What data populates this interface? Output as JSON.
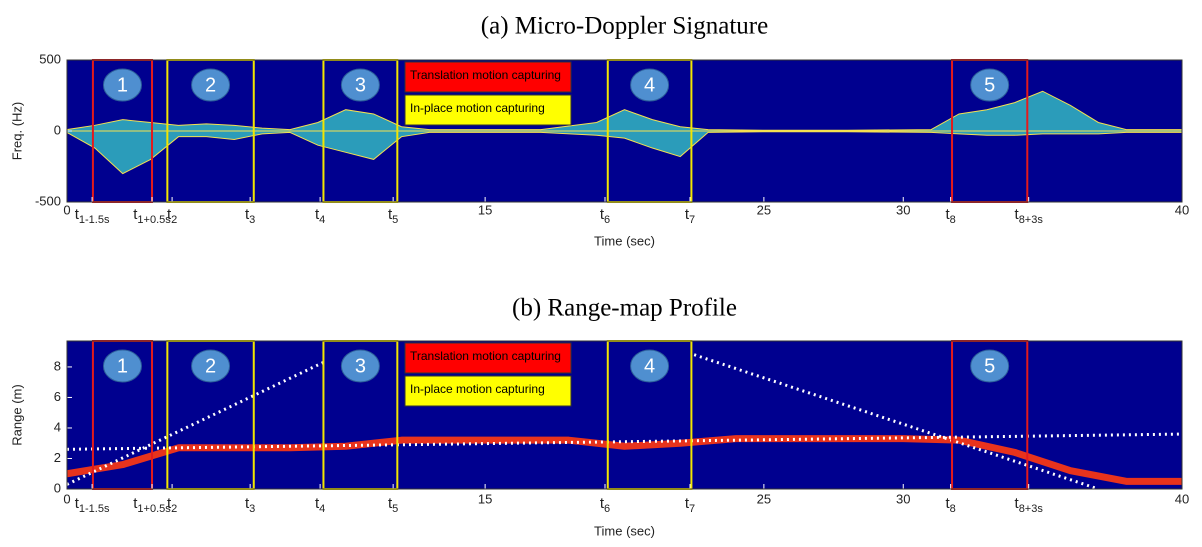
{
  "chart_data": [
    {
      "type": "spectrogram",
      "title": "(a) Micro-Doppler Signature",
      "xlabel": "Time (sec)",
      "ylabel": "Freq. (Hz)",
      "background": "#00008f",
      "xlim": [
        0,
        40
      ],
      "xticks": [
        0,
        {
          "value": 0.9,
          "label": "t",
          "subscript": "1-1.5s"
        },
        {
          "value": 3.05,
          "label": "t",
          "subscript": "1+0.5s"
        },
        {
          "value": 3.77,
          "label": "t",
          "subscript": "2"
        },
        {
          "value": 6.57,
          "label": "t",
          "subscript": "3"
        },
        {
          "value": 9.08,
          "label": "t",
          "subscript": "4"
        },
        {
          "value": 11.7,
          "label": "t",
          "subscript": "5"
        },
        15,
        {
          "value": 19.3,
          "label": "t",
          "subscript": "6"
        },
        {
          "value": 22.35,
          "label": "t",
          "subscript": "7"
        },
        25,
        30,
        {
          "value": 31.7,
          "label": "t",
          "subscript": "8"
        },
        {
          "value": 34.5,
          "label": "t",
          "subscript": "8+3s"
        },
        40
      ],
      "ylim": [
        -500,
        500
      ],
      "yticks": [
        -500,
        0,
        500
      ],
      "series": [
        {
          "kind": "area",
          "color": "#39d0c8",
          "x": [
            0,
            1,
            2,
            3,
            4,
            5,
            6,
            7,
            8,
            9,
            10,
            11,
            12,
            13,
            15,
            17,
            19,
            20,
            21,
            22,
            23,
            25,
            28,
            31,
            32,
            33,
            34,
            35,
            36,
            37,
            38,
            40
          ],
          "upper": [
            10,
            40,
            80,
            60,
            40,
            50,
            40,
            20,
            10,
            60,
            150,
            120,
            30,
            10,
            10,
            10,
            60,
            150,
            80,
            30,
            10,
            5,
            5,
            10,
            120,
            150,
            200,
            280,
            180,
            60,
            10,
            10
          ],
          "lower": [
            -10,
            -120,
            -300,
            -200,
            -40,
            -40,
            -60,
            -20,
            -10,
            -100,
            -150,
            -200,
            -40,
            -10,
            -10,
            -10,
            -30,
            -50,
            -120,
            -180,
            -10,
            -5,
            -5,
            -10,
            -20,
            -30,
            -30,
            -20,
            -20,
            -20,
            -10,
            -10
          ]
        }
      ],
      "boxes": [
        {
          "x": [
            0.93,
            3.05
          ],
          "label": "1",
          "color": "#e41a1c"
        },
        {
          "x": [
            3.6,
            6.7
          ],
          "label": "2",
          "color": "#f2e600"
        },
        {
          "x": [
            9.2,
            11.85
          ],
          "label": "3",
          "color": "#f2e600"
        },
        {
          "x": [
            19.4,
            22.4
          ],
          "label": "4",
          "color": "#f2e600"
        },
        {
          "x": [
            31.75,
            34.45
          ],
          "label": "5",
          "color": "#e41a1c"
        }
      ],
      "legend": [
        {
          "name": "Translation motion capturing",
          "color": "#ff0000"
        },
        {
          "name": "In-place motion capturing",
          "color": "#ffff00"
        }
      ]
    },
    {
      "type": "spectrogram",
      "title": "(b) Range-map Profile",
      "xlabel": "Time (sec)",
      "ylabel": "Range (m)",
      "background": "#00008f",
      "xlim": [
        0,
        40
      ],
      "xticks": [
        0,
        {
          "value": 0.9,
          "label": "t",
          "subscript": "1-1.5s"
        },
        {
          "value": 3.05,
          "label": "t",
          "subscript": "1+0.5s"
        },
        {
          "value": 3.77,
          "label": "t",
          "subscript": "2"
        },
        {
          "value": 6.57,
          "label": "t",
          "subscript": "3"
        },
        {
          "value": 9.08,
          "label": "t",
          "subscript": "4"
        },
        {
          "value": 11.7,
          "label": "t",
          "subscript": "5"
        },
        15,
        {
          "value": 19.3,
          "label": "t",
          "subscript": "6"
        },
        {
          "value": 22.35,
          "label": "t",
          "subscript": "7"
        },
        25,
        30,
        {
          "value": 31.7,
          "label": "t",
          "subscript": "8"
        },
        {
          "value": 34.5,
          "label": "t",
          "subscript": "8+3s"
        },
        40
      ],
      "ylim": [
        0,
        9.7
      ],
      "yticks": [
        0,
        2,
        4,
        6,
        8
      ],
      "series": [
        {
          "kind": "line",
          "color": "#e8331c",
          "x": [
            0,
            2,
            4,
            6,
            8,
            10,
            12,
            14,
            16,
            18,
            20,
            22,
            24,
            26,
            28,
            30,
            32,
            34,
            36,
            38,
            40
          ],
          "values": [
            1.0,
            1.6,
            2.7,
            2.7,
            2.7,
            2.8,
            3.2,
            3.2,
            3.2,
            3.2,
            2.8,
            3.0,
            3.3,
            3.3,
            3.3,
            3.3,
            3.2,
            2.4,
            1.2,
            0.5,
            0.5
          ]
        },
        {
          "kind": "dotted",
          "color": "#ffffff",
          "x": [
            0,
            40
          ],
          "values": [
            2.6,
            3.6
          ]
        },
        {
          "kind": "dotted",
          "color": "#ffffff",
          "x": [
            0,
            9.2
          ],
          "values": [
            0.3,
            8.3
          ]
        },
        {
          "kind": "dotted",
          "color": "#ffffff",
          "x": [
            22.5,
            37
          ],
          "values": [
            8.8,
            0
          ]
        }
      ],
      "boxes": [
        {
          "x": [
            0.93,
            3.05
          ],
          "label": "1",
          "color": "#e41a1c"
        },
        {
          "x": [
            3.6,
            6.7
          ],
          "label": "2",
          "color": "#f2e600"
        },
        {
          "x": [
            9.2,
            11.85
          ],
          "label": "3",
          "color": "#f2e600"
        },
        {
          "x": [
            19.4,
            22.4
          ],
          "label": "4",
          "color": "#f2e600"
        },
        {
          "x": [
            31.75,
            34.45
          ],
          "label": "5",
          "color": "#e41a1c"
        }
      ],
      "legend": [
        {
          "name": "Translation motion capturing",
          "color": "#ff0000"
        },
        {
          "name": "In-place motion capturing",
          "color": "#ffff00"
        }
      ]
    }
  ]
}
